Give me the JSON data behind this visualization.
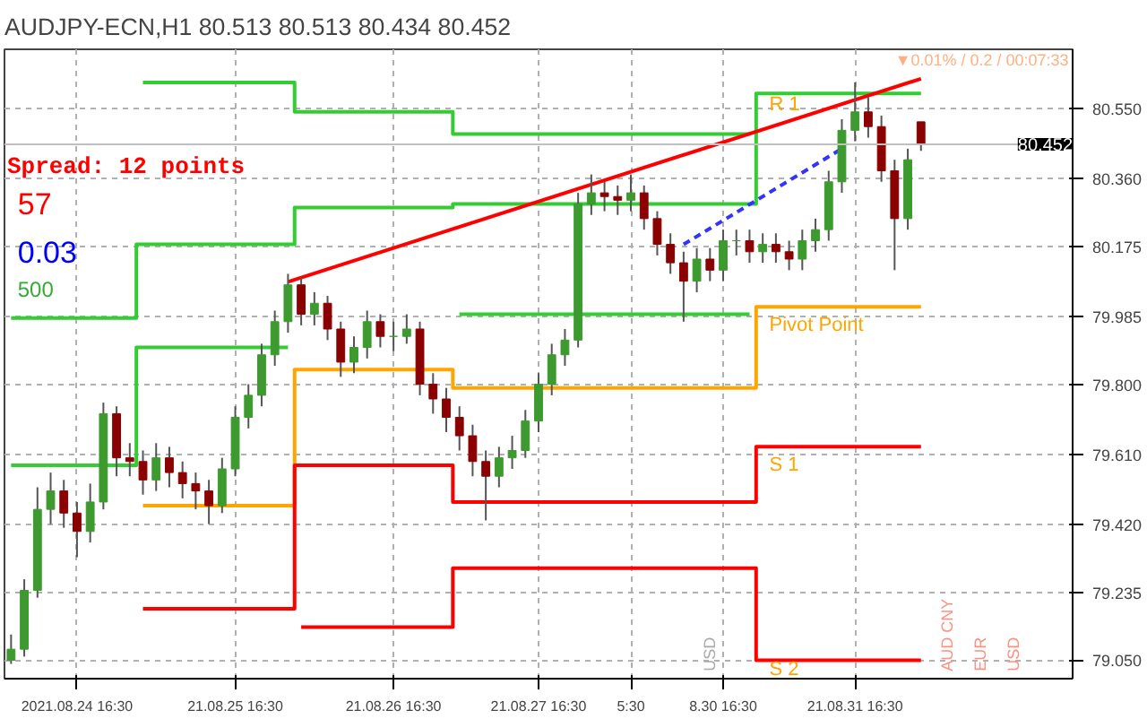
{
  "chart_data": {
    "type": "candlestick",
    "title": "AUDJPY-ECN,H1  80.513 80.513 80.434 80.452",
    "categories": [
      null,
      null,
      null,
      null,
      null,
      "2021.08.24 16:30",
      null,
      null,
      null,
      null,
      null,
      null,
      null,
      null,
      null,
      null,
      null,
      "21.08.25 16:30",
      null,
      null,
      null,
      null,
      null,
      null,
      null,
      null,
      null,
      null,
      null,
      "21.08.26 16:30",
      null,
      null,
      null,
      null,
      null,
      null,
      null,
      null,
      null,
      null,
      "21.08.27 16:30",
      null,
      null,
      null,
      null,
      null,
      null,
      "5:30",
      null,
      null,
      null,
      null,
      null,
      null,
      "8.30 16:30",
      null,
      null,
      null,
      null,
      null,
      null,
      null,
      null,
      null,
      "21.08.31 16:30",
      null,
      null,
      null,
      null,
      null
    ],
    "colors": [
      "#3c9a2e",
      "#3c9a2e",
      "#3c9a2e",
      "#3c9a2e",
      "#8b0000",
      "#8b0000",
      "#3c9a2e",
      "#3c9a2e",
      "#8b0000",
      "#8b0000",
      "#8b0000",
      "#3c9a2e",
      "#8b0000",
      "#8b0000",
      "#8b0000",
      "#8b0000",
      "#3c9a2e",
      "#3c9a2e",
      "#3c9a2e",
      "#3c9a2e",
      "#3c9a2e",
      "#3c9a2e",
      "#8b0000",
      "#3c9a2e",
      "#8b0000",
      "#8b0000",
      "#3c9a2e",
      "#3c9a2e",
      "#8b0000",
      "#3c9a2e",
      "#3c9a2e",
      "#8b0000",
      "#8b0000",
      "#8b0000",
      "#8b0000",
      "#8b0000",
      "#8b0000",
      "#3c9a2e",
      "#3c9a2e",
      "#3c9a2e",
      "#3c9a2e",
      "#3c9a2e",
      "#3c9a2e",
      "#3c9a2e",
      "#3c9a2e",
      "#8b0000",
      "#8b0000",
      "#3c9a2e",
      "#8b0000",
      "#8b0000",
      "#8b0000",
      "#8b0000",
      "#3c9a2e",
      "#8b0000",
      "#3c9a2e",
      "#3c9a2e",
      "#8b0000",
      "#3c9a2e",
      "#8b0000",
      "#8b0000",
      "#3c9a2e",
      "#3c9a2e",
      "#3c9a2e",
      "#3c9a2e",
      "#3c9a2e",
      "#8b0000",
      "#8b0000",
      "#8b0000",
      "#3c9a2e",
      "#8b0000"
    ],
    "ohlc": [
      [
        79.05,
        79.12,
        79.04,
        79.08
      ],
      [
        79.08,
        79.27,
        79.06,
        79.24
      ],
      [
        79.24,
        79.52,
        79.22,
        79.46
      ],
      [
        79.46,
        79.56,
        79.42,
        79.51
      ],
      [
        79.51,
        79.54,
        79.41,
        79.45
      ],
      [
        79.45,
        79.48,
        79.33,
        79.4
      ],
      [
        79.4,
        79.53,
        79.37,
        79.48
      ],
      [
        79.48,
        79.75,
        79.46,
        79.72
      ],
      [
        79.72,
        79.74,
        79.55,
        79.6
      ],
      [
        79.6,
        79.64,
        79.55,
        79.59
      ],
      [
        79.59,
        79.62,
        79.5,
        79.54
      ],
      [
        79.54,
        79.64,
        79.51,
        79.6
      ],
      [
        79.6,
        79.63,
        79.52,
        79.56
      ],
      [
        79.56,
        79.59,
        79.49,
        79.53
      ],
      [
        79.53,
        79.56,
        79.46,
        79.51
      ],
      [
        79.51,
        79.54,
        79.42,
        79.47
      ],
      [
        79.47,
        79.6,
        79.45,
        79.57
      ],
      [
        79.57,
        79.74,
        79.55,
        79.71
      ],
      [
        79.71,
        79.8,
        79.68,
        79.77
      ],
      [
        79.77,
        79.91,
        79.74,
        79.88
      ],
      [
        79.88,
        80.0,
        79.85,
        79.97
      ],
      [
        79.97,
        80.1,
        79.94,
        80.07
      ],
      [
        80.07,
        80.09,
        79.96,
        79.99
      ],
      [
        79.99,
        80.05,
        79.96,
        80.02
      ],
      [
        80.02,
        80.04,
        79.92,
        79.95
      ],
      [
        79.95,
        79.97,
        79.82,
        79.86
      ],
      [
        79.86,
        79.93,
        79.83,
        79.9
      ],
      [
        79.9,
        80.0,
        79.87,
        79.97
      ],
      [
        79.97,
        79.99,
        79.9,
        79.93
      ],
      [
        79.93,
        79.97,
        79.89,
        79.93
      ],
      [
        79.93,
        79.99,
        79.91,
        79.95
      ],
      [
        79.95,
        79.97,
        79.77,
        79.8
      ],
      [
        79.8,
        79.83,
        79.72,
        79.76
      ],
      [
        79.76,
        79.79,
        79.67,
        79.71
      ],
      [
        79.71,
        79.74,
        79.62,
        79.66
      ],
      [
        79.66,
        79.69,
        79.55,
        79.59
      ],
      [
        79.59,
        79.62,
        79.43,
        79.55
      ],
      [
        79.55,
        79.63,
        79.52,
        79.6
      ],
      [
        79.6,
        79.66,
        79.57,
        79.62
      ],
      [
        79.62,
        79.73,
        79.6,
        79.7
      ],
      [
        79.7,
        79.83,
        79.67,
        79.8
      ],
      [
        79.8,
        79.91,
        79.77,
        79.88
      ],
      [
        79.88,
        79.95,
        79.85,
        79.92
      ],
      [
        79.92,
        80.32,
        79.9,
        80.29
      ],
      [
        80.29,
        80.37,
        80.26,
        80.32
      ],
      [
        80.32,
        80.35,
        80.27,
        80.31
      ],
      [
        80.31,
        80.34,
        80.26,
        80.3
      ],
      [
        80.3,
        80.37,
        80.27,
        80.32
      ],
      [
        80.32,
        80.34,
        80.22,
        80.25
      ],
      [
        80.25,
        80.27,
        80.15,
        80.18
      ],
      [
        80.18,
        80.21,
        80.1,
        80.13
      ],
      [
        80.13,
        80.16,
        79.97,
        80.08
      ],
      [
        80.08,
        80.17,
        80.05,
        80.14
      ],
      [
        80.14,
        80.17,
        80.08,
        80.11
      ],
      [
        80.11,
        80.22,
        80.08,
        80.19
      ],
      [
        80.19,
        80.22,
        80.15,
        80.19
      ],
      [
        80.19,
        80.22,
        80.13,
        80.16
      ],
      [
        80.16,
        80.21,
        80.13,
        80.18
      ],
      [
        80.18,
        80.21,
        80.13,
        80.16
      ],
      [
        80.16,
        80.19,
        80.11,
        80.14
      ],
      [
        80.14,
        80.22,
        80.11,
        80.19
      ],
      [
        80.19,
        80.25,
        80.16,
        80.22
      ],
      [
        80.22,
        80.38,
        80.19,
        80.35
      ],
      [
        80.35,
        80.52,
        80.32,
        80.49
      ],
      [
        80.49,
        80.62,
        80.46,
        80.54
      ],
      [
        80.54,
        80.58,
        80.47,
        80.5
      ],
      [
        80.5,
        80.53,
        80.35,
        80.38
      ],
      [
        80.38,
        80.41,
        80.11,
        80.25
      ],
      [
        80.25,
        80.44,
        80.22,
        80.41
      ],
      [
        80.513,
        80.513,
        80.434,
        80.452
      ]
    ],
    "series": [
      {
        "type": "step",
        "color": "#33cc33",
        "values": [
          null,
          null,
          null,
          null,
          null,
          null,
          null,
          null,
          null,
          null,
          80.62,
          80.62,
          80.62,
          80.62,
          80.62,
          80.62,
          80.62,
          80.62,
          80.62,
          80.62,
          80.62,
          80.62,
          80.54,
          80.54,
          80.54,
          80.54,
          80.54,
          80.54,
          80.54,
          80.54,
          80.54,
          80.54,
          80.54,
          80.54,
          80.48,
          80.48,
          80.48,
          80.48,
          80.48,
          80.48,
          80.48,
          80.48,
          80.48,
          80.48,
          80.48,
          80.48,
          80.48,
          80.48,
          80.48,
          80.48,
          80.48,
          80.48,
          80.48,
          80.48,
          80.48,
          80.48,
          80.48,
          null,
          null,
          null,
          null,
          null,
          null,
          null,
          null,
          null,
          null,
          null,
          null,
          null
        ]
      },
      {
        "type": "step",
        "color": "#33cc33",
        "values": [
          79.98,
          79.98,
          79.98,
          79.98,
          79.98,
          79.98,
          79.98,
          79.98,
          79.98,
          79.98,
          80.18,
          80.18,
          80.18,
          80.18,
          80.18,
          80.18,
          80.18,
          80.18,
          80.18,
          80.18,
          80.18,
          80.18,
          80.28,
          80.28,
          80.28,
          80.28,
          80.28,
          80.28,
          80.28,
          80.28,
          80.28,
          80.28,
          80.28,
          80.28,
          80.29,
          80.29,
          80.29,
          80.29,
          80.29,
          80.29,
          80.29,
          80.29,
          80.29,
          80.29,
          80.29,
          80.29,
          80.29,
          80.29,
          80.29,
          80.29,
          80.29,
          80.29,
          80.29,
          80.29,
          80.29,
          80.29,
          80.29,
          80.59,
          80.59,
          80.59,
          80.59,
          80.59,
          80.59,
          80.59,
          80.59,
          80.59,
          80.59,
          80.59,
          80.59,
          80.59
        ]
      },
      {
        "type": "step",
        "color": "#33cc33",
        "values": [
          79.58,
          79.58,
          79.58,
          79.58,
          79.58,
          79.58,
          79.58,
          79.58,
          79.58,
          79.58,
          79.9,
          79.9,
          79.9,
          79.9,
          79.9,
          79.9,
          79.9,
          79.9,
          79.9,
          79.9,
          79.9,
          79.9,
          null,
          null,
          null,
          null,
          null,
          null,
          null,
          null,
          null,
          null,
          null,
          null,
          79.99,
          79.99,
          79.99,
          79.99,
          79.99,
          79.99,
          79.99,
          79.99,
          79.99,
          79.99,
          79.99,
          79.99,
          79.99,
          79.99,
          79.99,
          79.99,
          79.99,
          79.99,
          79.99,
          79.99,
          79.99,
          79.99,
          79.99,
          null,
          null,
          null,
          null,
          null,
          null,
          null,
          null,
          null,
          null,
          null,
          null,
          null
        ]
      },
      {
        "type": "step",
        "color": "#ffa500",
        "values": [
          null,
          null,
          null,
          null,
          null,
          null,
          null,
          null,
          null,
          null,
          79.47,
          79.47,
          79.47,
          79.47,
          79.47,
          79.47,
          79.47,
          79.47,
          79.47,
          79.47,
          79.47,
          79.47,
          79.84,
          79.84,
          79.84,
          79.84,
          79.84,
          79.84,
          79.84,
          79.84,
          79.84,
          79.84,
          79.84,
          79.84,
          79.79,
          79.79,
          79.79,
          79.79,
          79.79,
          79.79,
          79.79,
          79.79,
          79.79,
          79.79,
          79.79,
          79.79,
          79.79,
          79.79,
          79.79,
          79.79,
          79.79,
          79.79,
          79.79,
          79.79,
          79.79,
          79.79,
          79.79,
          80.01,
          80.01,
          80.01,
          80.01,
          80.01,
          80.01,
          80.01,
          80.01,
          80.01,
          80.01,
          80.01,
          80.01,
          80.01
        ]
      },
      {
        "type": "step",
        "color": "#ff0000",
        "values": [
          null,
          null,
          null,
          null,
          null,
          null,
          null,
          null,
          null,
          null,
          79.19,
          79.19,
          79.19,
          79.19,
          79.19,
          79.19,
          79.19,
          79.19,
          79.19,
          79.19,
          79.19,
          79.19,
          79.58,
          79.58,
          79.58,
          79.58,
          79.58,
          79.58,
          79.58,
          79.58,
          79.58,
          79.58,
          79.58,
          79.58,
          79.48,
          79.48,
          79.48,
          79.48,
          79.48,
          79.48,
          79.48,
          79.48,
          79.48,
          79.48,
          79.48,
          79.48,
          79.48,
          79.48,
          79.48,
          79.48,
          79.48,
          79.48,
          79.48,
          79.48,
          79.48,
          79.48,
          79.48,
          79.63,
          79.63,
          79.63,
          79.63,
          79.63,
          79.63,
          79.63,
          79.63,
          79.63,
          79.63,
          79.63,
          79.63,
          79.63
        ]
      },
      {
        "type": "step",
        "color": "#ff0000",
        "values": [
          null,
          null,
          null,
          null,
          null,
          null,
          null,
          null,
          null,
          null,
          null,
          null,
          null,
          null,
          null,
          null,
          null,
          null,
          null,
          null,
          null,
          null,
          79.14,
          79.14,
          79.14,
          79.14,
          79.14,
          79.14,
          79.14,
          79.14,
          79.14,
          79.14,
          79.14,
          79.14,
          79.3,
          79.3,
          79.3,
          79.3,
          79.3,
          79.3,
          79.3,
          79.3,
          79.3,
          79.3,
          79.3,
          79.3,
          79.3,
          79.3,
          79.3,
          79.3,
          79.3,
          79.3,
          79.3,
          79.3,
          79.3,
          79.3,
          79.3,
          79.05,
          79.05,
          79.05,
          79.05,
          79.05,
          79.05,
          79.05,
          79.05,
          79.05,
          79.05,
          79.05,
          79.05,
          79.05
        ]
      },
      {
        "type": "line",
        "color": "#ff0000",
        "values": [
          null,
          null,
          null,
          null,
          null,
          null,
          null,
          null,
          null,
          null,
          null,
          null,
          null,
          null,
          null,
          null,
          null,
          null,
          null,
          null,
          null,
          80.078,
          null,
          null,
          null,
          null,
          null,
          null,
          null,
          null,
          null,
          null,
          null,
          null,
          null,
          null,
          null,
          null,
          null,
          null,
          null,
          null,
          null,
          null,
          null,
          null,
          null,
          null,
          null,
          null,
          null,
          null,
          null,
          null,
          null,
          null,
          null,
          null,
          null,
          null,
          null,
          null,
          null,
          null,
          null,
          null,
          null,
          null,
          null,
          80.63
        ]
      },
      {
        "type": "line",
        "color": "#3333ff",
        "line_style": "dashed",
        "values": [
          null,
          null,
          null,
          null,
          null,
          null,
          null,
          null,
          null,
          null,
          null,
          null,
          null,
          null,
          null,
          null,
          null,
          null,
          null,
          null,
          null,
          null,
          null,
          null,
          null,
          null,
          null,
          null,
          null,
          null,
          null,
          null,
          null,
          null,
          null,
          null,
          null,
          null,
          null,
          null,
          null,
          null,
          null,
          null,
          null,
          null,
          null,
          null,
          null,
          null,
          null,
          80.18,
          null,
          null,
          null,
          null,
          null,
          null,
          null,
          null,
          null,
          null,
          null,
          80.44,
          null,
          null,
          null,
          null,
          null,
          null
        ]
      }
    ],
    "ref_lines": [
      {
        "axis": "y",
        "value": 80.452,
        "label": "80.452",
        "color": "#c0c0c0"
      }
    ],
    "annotations": [
      "Spread: 12 points",
      "57",
      "0.03",
      "500",
      "R 1",
      "Pivot Point",
      "S 1",
      "S 2",
      "▼0.01% / 0.2 / 00:07:33",
      "USD",
      "AUD CNY",
      "EUR",
      "USD"
    ],
    "ylim": [
      79.0,
      80.71
    ],
    "yticks": [
      {
        "value": 79.05,
        "label": "79.050"
      },
      {
        "value": 79.235,
        "label": "79.235"
      },
      {
        "value": 79.42,
        "label": "79.420"
      },
      {
        "value": 79.61,
        "label": "79.610"
      },
      {
        "value": 79.8,
        "label": "79.800"
      },
      {
        "value": 79.985,
        "label": "79.985"
      },
      {
        "value": 80.175,
        "label": "80.175"
      },
      {
        "value": 80.36,
        "label": "80.360"
      },
      {
        "value": 80.55,
        "label": "80.550"
      }
    ],
    "grid": true
  }
}
